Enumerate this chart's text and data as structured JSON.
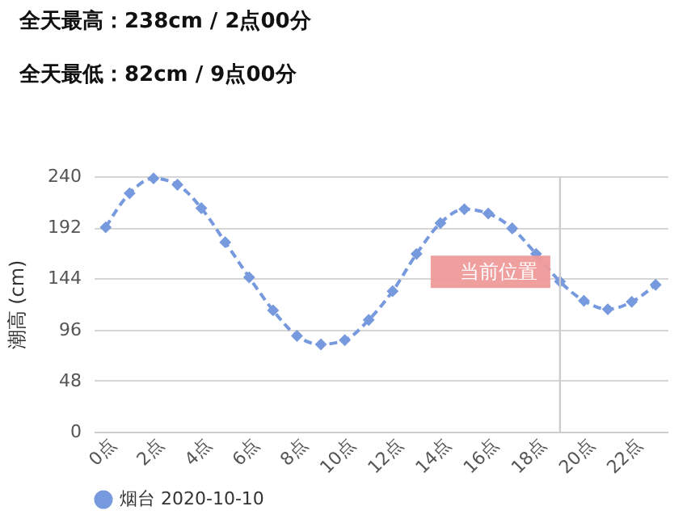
{
  "chart_data": {
    "type": "line",
    "annotations": [
      "全天最高：238cm / 2点00分",
      "全天最低：82cm / 9点00分"
    ],
    "ylabel": "潮高 (cm)",
    "x": [
      0,
      1,
      2,
      3,
      4,
      5,
      6,
      7,
      8,
      9,
      10,
      11,
      12,
      13,
      14,
      15,
      16,
      17,
      18,
      19,
      20,
      21,
      22,
      23
    ],
    "series": [
      {
        "name": "烟台 2020-10-10",
        "color": "#7799dd",
        "values": [
          192,
          224,
          238,
          232,
          210,
          178,
          145,
          114,
          90,
          82,
          86,
          105,
          132,
          167,
          196,
          209,
          205,
          191,
          167,
          141,
          123,
          115,
          122,
          138
        ]
      }
    ],
    "xlim": [
      -0.5,
      23.5
    ],
    "xticks": [
      {
        "value": 0,
        "label": "0点"
      },
      {
        "value": 2,
        "label": "2点"
      },
      {
        "value": 4,
        "label": "4点"
      },
      {
        "value": 6,
        "label": "6点"
      },
      {
        "value": 8,
        "label": "8点"
      },
      {
        "value": 10,
        "label": "10点"
      },
      {
        "value": 12,
        "label": "12点"
      },
      {
        "value": 14,
        "label": "14点"
      },
      {
        "value": 16,
        "label": "16点"
      },
      {
        "value": 18,
        "label": "18点"
      },
      {
        "value": 20,
        "label": "20点"
      },
      {
        "value": 22,
        "label": "22点"
      }
    ],
    "ylim": [
      0,
      240
    ],
    "yticks": [
      0,
      48,
      96,
      144,
      192,
      240
    ],
    "ref_lines": [
      {
        "axis": "x",
        "value": 19,
        "label": "当前位置",
        "color": "#cccccc"
      }
    ],
    "grid": "y",
    "legend": "bottom",
    "marker": "diamond",
    "line_style": "dashed"
  }
}
